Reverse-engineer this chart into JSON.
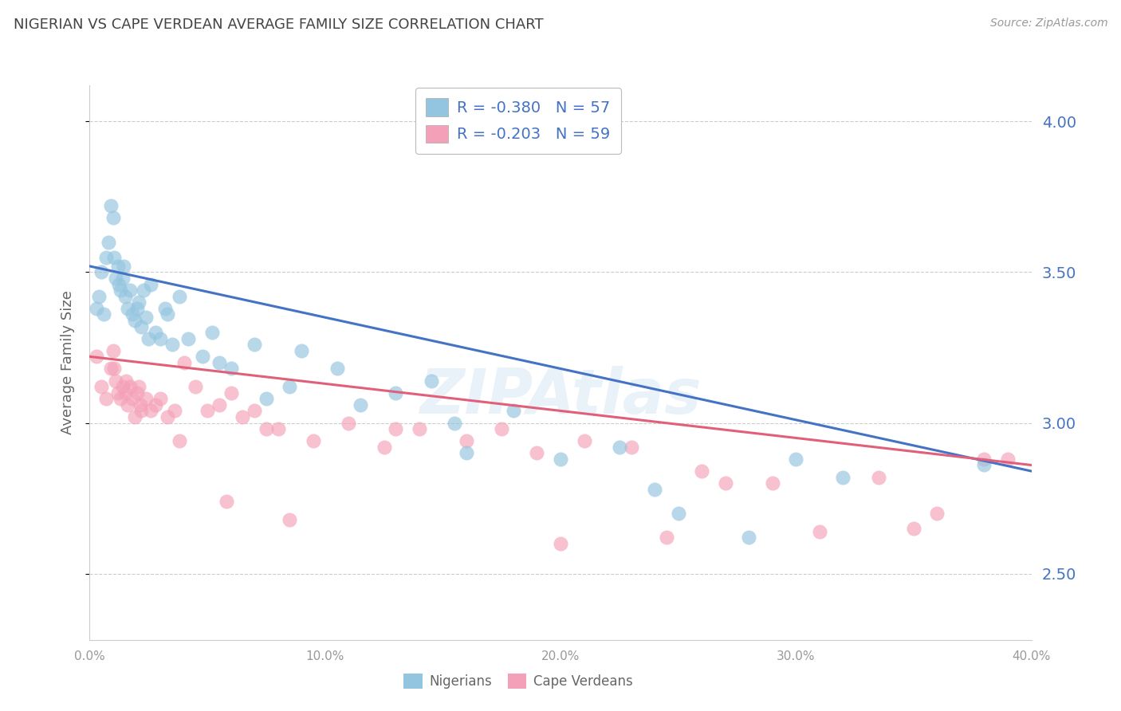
{
  "title": "NIGERIAN VS CAPE VERDEAN AVERAGE FAMILY SIZE CORRELATION CHART",
  "source": "Source: ZipAtlas.com",
  "ylabel": "Average Family Size",
  "xlim": [
    0.0,
    40.0
  ],
  "ylim": [
    2.28,
    4.12
  ],
  "yticks_right": [
    2.5,
    3.0,
    3.5,
    4.0
  ],
  "legend_labels": [
    "Nigerians",
    "Cape Verdeans"
  ],
  "nigerian_color": "#93c4e0",
  "capeverdean_color": "#f4a0b8",
  "nigerian_line_color": "#4472c4",
  "capeverdean_line_color": "#e0607a",
  "background_color": "#ffffff",
  "grid_color": "#cccccc",
  "right_axis_color": "#4472c4",
  "r_nigerian": -0.38,
  "n_nigerian": 57,
  "r_capeverdean": -0.203,
  "n_capeverdean": 59,
  "nig_line_x0": 0.0,
  "nig_line_y0": 3.52,
  "nig_line_x1": 40.0,
  "nig_line_y1": 2.84,
  "cv_line_x0": 0.0,
  "cv_line_y0": 3.22,
  "cv_line_x1": 40.0,
  "cv_line_y1": 2.86,
  "nigerians_x": [
    0.3,
    0.4,
    0.5,
    0.6,
    0.7,
    0.8,
    0.9,
    1.0,
    1.1,
    1.2,
    1.3,
    1.4,
    1.5,
    1.6,
    1.7,
    1.8,
    1.9,
    2.0,
    2.1,
    2.2,
    2.3,
    2.4,
    2.6,
    2.8,
    3.0,
    3.2,
    3.5,
    3.8,
    4.2,
    4.8,
    5.2,
    6.0,
    7.0,
    8.5,
    9.0,
    10.5,
    11.5,
    13.0,
    14.5,
    16.0,
    18.0,
    20.0,
    22.5,
    25.0,
    28.0,
    30.0,
    32.0,
    38.0,
    1.05,
    1.25,
    1.45,
    2.5,
    3.3,
    5.5,
    7.5,
    15.5,
    24.0
  ],
  "nigerians_y": [
    3.38,
    3.42,
    3.5,
    3.36,
    3.55,
    3.6,
    3.72,
    3.68,
    3.48,
    3.52,
    3.44,
    3.48,
    3.42,
    3.38,
    3.44,
    3.36,
    3.34,
    3.38,
    3.4,
    3.32,
    3.44,
    3.35,
    3.46,
    3.3,
    3.28,
    3.38,
    3.26,
    3.42,
    3.28,
    3.22,
    3.3,
    3.18,
    3.26,
    3.12,
    3.24,
    3.18,
    3.06,
    3.1,
    3.14,
    2.9,
    3.04,
    2.88,
    2.92,
    2.7,
    2.62,
    2.88,
    2.82,
    2.86,
    3.55,
    3.46,
    3.52,
    3.28,
    3.36,
    3.2,
    3.08,
    3.0,
    2.78
  ],
  "capeverdeans_x": [
    0.3,
    0.5,
    0.7,
    0.9,
    1.0,
    1.1,
    1.2,
    1.3,
    1.4,
    1.5,
    1.6,
    1.7,
    1.8,
    1.9,
    2.0,
    2.1,
    2.2,
    2.4,
    2.6,
    2.8,
    3.0,
    3.3,
    3.6,
    4.0,
    4.5,
    5.0,
    5.5,
    6.0,
    6.5,
    7.0,
    7.5,
    8.0,
    9.5,
    11.0,
    12.5,
    14.0,
    16.0,
    17.5,
    19.0,
    21.0,
    23.0,
    24.5,
    26.0,
    29.0,
    31.0,
    33.5,
    36.0,
    38.0,
    1.05,
    1.55,
    2.15,
    3.8,
    5.8,
    8.5,
    13.0,
    20.0,
    27.0,
    35.0,
    39.0
  ],
  "capeverdeans_y": [
    3.22,
    3.12,
    3.08,
    3.18,
    3.24,
    3.14,
    3.1,
    3.08,
    3.12,
    3.1,
    3.06,
    3.12,
    3.08,
    3.02,
    3.1,
    3.12,
    3.04,
    3.08,
    3.04,
    3.06,
    3.08,
    3.02,
    3.04,
    3.2,
    3.12,
    3.04,
    3.06,
    3.1,
    3.02,
    3.04,
    2.98,
    2.98,
    2.94,
    3.0,
    2.92,
    2.98,
    2.94,
    2.98,
    2.9,
    2.94,
    2.92,
    2.62,
    2.84,
    2.8,
    2.64,
    2.82,
    2.7,
    2.88,
    3.18,
    3.14,
    3.06,
    2.94,
    2.74,
    2.68,
    2.98,
    2.6,
    2.8,
    2.65,
    2.88
  ]
}
